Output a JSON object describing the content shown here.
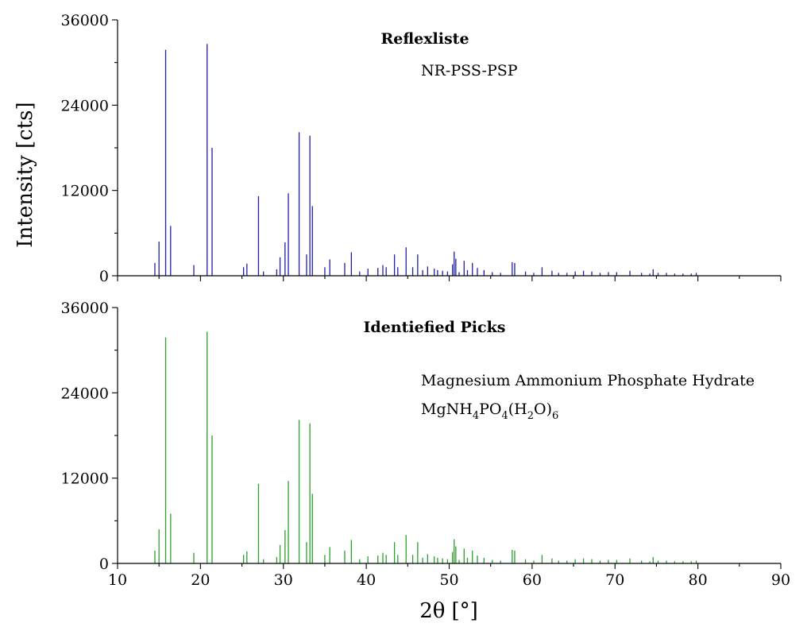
{
  "chart_data": [
    {
      "type": "bar",
      "title": "Reflexliste",
      "annotation": "NR-PSS-PSP",
      "color": "#1f1fa8",
      "xlim": [
        10,
        90
      ],
      "ylim": [
        0,
        36000
      ],
      "x_ticks": [
        "10",
        "20",
        "30",
        "40",
        "50",
        "60",
        "70",
        "80",
        "90"
      ],
      "y_ticks": [
        "0",
        "12000",
        "24000",
        "36000"
      ],
      "x": [
        14.5,
        15.0,
        15.8,
        16.4,
        19.2,
        20.8,
        21.4,
        25.2,
        25.6,
        27.0,
        27.6,
        29.2,
        29.6,
        30.2,
        30.6,
        31.9,
        32.8,
        33.2,
        33.5,
        35.0,
        35.6,
        37.4,
        38.2,
        39.2,
        40.2,
        41.4,
        42.0,
        42.4,
        43.4,
        43.8,
        44.8,
        45.6,
        46.2,
        46.8,
        47.4,
        48.2,
        48.6,
        49.2,
        49.8,
        50.4,
        50.6,
        50.8,
        51.2,
        51.8,
        52.2,
        52.8,
        53.4,
        54.2,
        55.2,
        56.2,
        57.6,
        57.9,
        59.2,
        60.2,
        61.2,
        62.4,
        63.2,
        64.2,
        65.2,
        66.2,
        67.2,
        68.2,
        69.2,
        70.2,
        71.8,
        73.2,
        74.2,
        74.6,
        75.2,
        76.2,
        77.2,
        78.2,
        79.2,
        79.8
      ],
      "values": [
        1800,
        4800,
        31800,
        7000,
        1500,
        32600,
        18000,
        1200,
        1700,
        11200,
        600,
        900,
        2600,
        4700,
        11600,
        20200,
        3000,
        19700,
        9800,
        1200,
        2300,
        1800,
        3300,
        600,
        1000,
        1100,
        1500,
        1200,
        3000,
        1200,
        4000,
        1200,
        3000,
        800,
        1300,
        1000,
        800,
        700,
        600,
        1600,
        3400,
        2400,
        500,
        2100,
        800,
        1800,
        1100,
        800,
        500,
        400,
        1900,
        1800,
        600,
        400,
        1200,
        700,
        400,
        400,
        600,
        700,
        600,
        400,
        500,
        500,
        700,
        400,
        300,
        900,
        400,
        400,
        300,
        300,
        300,
        400
      ]
    },
    {
      "type": "bar",
      "title": "Identiefied Picks",
      "annotation_line1": "Magnesium Ammonium Phosphate Hydrate",
      "annotation_line2_parts": [
        "MgNH",
        "4",
        "PO",
        "4",
        "(H",
        "2",
        "O)",
        "6"
      ],
      "color": "#2ca02c",
      "xlim": [
        10,
        90
      ],
      "ylim": [
        0,
        36000
      ],
      "x_ticks": [
        "10",
        "20",
        "30",
        "40",
        "50",
        "60",
        "70",
        "80",
        "90"
      ],
      "y_ticks": [
        "0",
        "12000",
        "24000",
        "36000"
      ],
      "x": [
        14.5,
        15.0,
        15.8,
        16.4,
        19.2,
        20.8,
        21.4,
        25.2,
        25.6,
        27.0,
        27.6,
        29.2,
        29.6,
        30.2,
        30.6,
        31.9,
        32.8,
        33.2,
        33.5,
        35.0,
        35.6,
        37.4,
        38.2,
        39.2,
        40.2,
        41.4,
        42.0,
        42.4,
        43.4,
        43.8,
        44.8,
        45.6,
        46.2,
        46.8,
        47.4,
        48.2,
        48.6,
        49.2,
        49.8,
        50.4,
        50.6,
        50.8,
        51.2,
        51.8,
        52.2,
        52.8,
        53.4,
        54.2,
        55.2,
        56.2,
        57.6,
        57.9,
        59.2,
        60.2,
        61.2,
        62.4,
        63.2,
        64.2,
        65.2,
        66.2,
        67.2,
        68.2,
        69.2,
        70.2,
        71.8,
        73.2,
        74.2,
        74.6,
        75.2,
        76.2,
        77.2,
        78.2,
        79.2,
        79.8
      ],
      "values": [
        1800,
        4800,
        31800,
        7000,
        1500,
        32600,
        18000,
        1200,
        1700,
        11200,
        600,
        900,
        2600,
        4700,
        11600,
        20200,
        3000,
        19700,
        9800,
        1200,
        2300,
        1800,
        3300,
        600,
        1000,
        1100,
        1500,
        1200,
        3000,
        1200,
        4000,
        1200,
        3000,
        800,
        1300,
        1000,
        800,
        700,
        600,
        1600,
        3400,
        2400,
        500,
        2100,
        800,
        1800,
        1100,
        800,
        500,
        400,
        1900,
        1800,
        600,
        400,
        1200,
        700,
        400,
        400,
        600,
        700,
        600,
        400,
        500,
        500,
        700,
        400,
        300,
        900,
        400,
        400,
        300,
        300,
        300,
        400
      ]
    }
  ],
  "axes": {
    "ylabel": "Intensity [cts]",
    "xlabel_symbol": "2θ",
    "xlabel_unit": "[°]"
  }
}
